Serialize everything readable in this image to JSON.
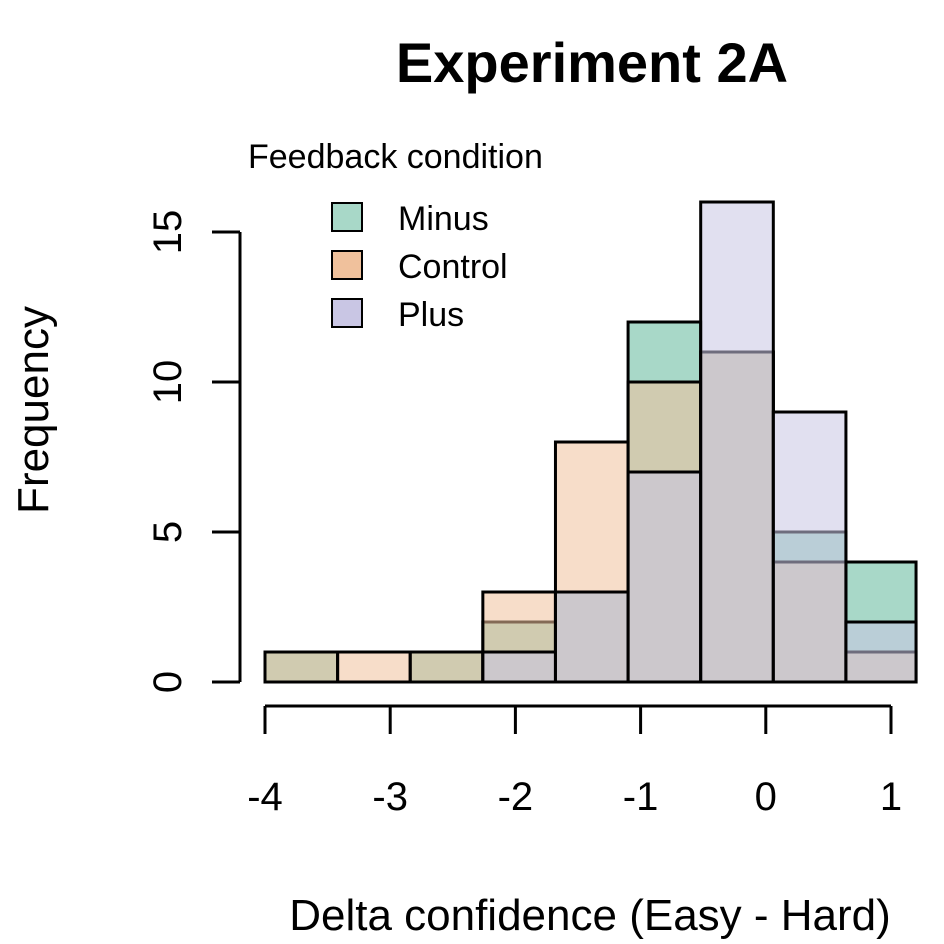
{
  "chart_data": {
    "type": "bar",
    "title": "Experiment 2A",
    "xlabel": "Delta confidence (Easy - Hard)",
    "ylabel": "Frequency",
    "xlim": [
      -4,
      1.2
    ],
    "ylim": [
      0,
      16
    ],
    "x_ticks": [
      -4,
      -3,
      -2,
      -1,
      0,
      1
    ],
    "y_ticks": [
      0,
      5,
      10,
      15
    ],
    "bin_edges": [
      -4.0,
      -3.42,
      -2.84,
      -2.26,
      -1.68,
      -1.1,
      -0.52,
      0.06,
      0.64,
      1.2
    ],
    "legend": {
      "title": "Feedback condition",
      "position": "top-left"
    },
    "series": [
      {
        "name": "Minus",
        "color": "#A8D8C8",
        "values": [
          1,
          0,
          1,
          2,
          3,
          12,
          11,
          5,
          4
        ]
      },
      {
        "name": "Control",
        "color": "#F0C19C",
        "values": [
          1,
          1,
          1,
          3,
          8,
          10,
          11,
          4,
          1
        ]
      },
      {
        "name": "Plus",
        "color": "#C9C6E4",
        "values": [
          0,
          0,
          0,
          1,
          3,
          7,
          16,
          9,
          2
        ]
      }
    ]
  }
}
